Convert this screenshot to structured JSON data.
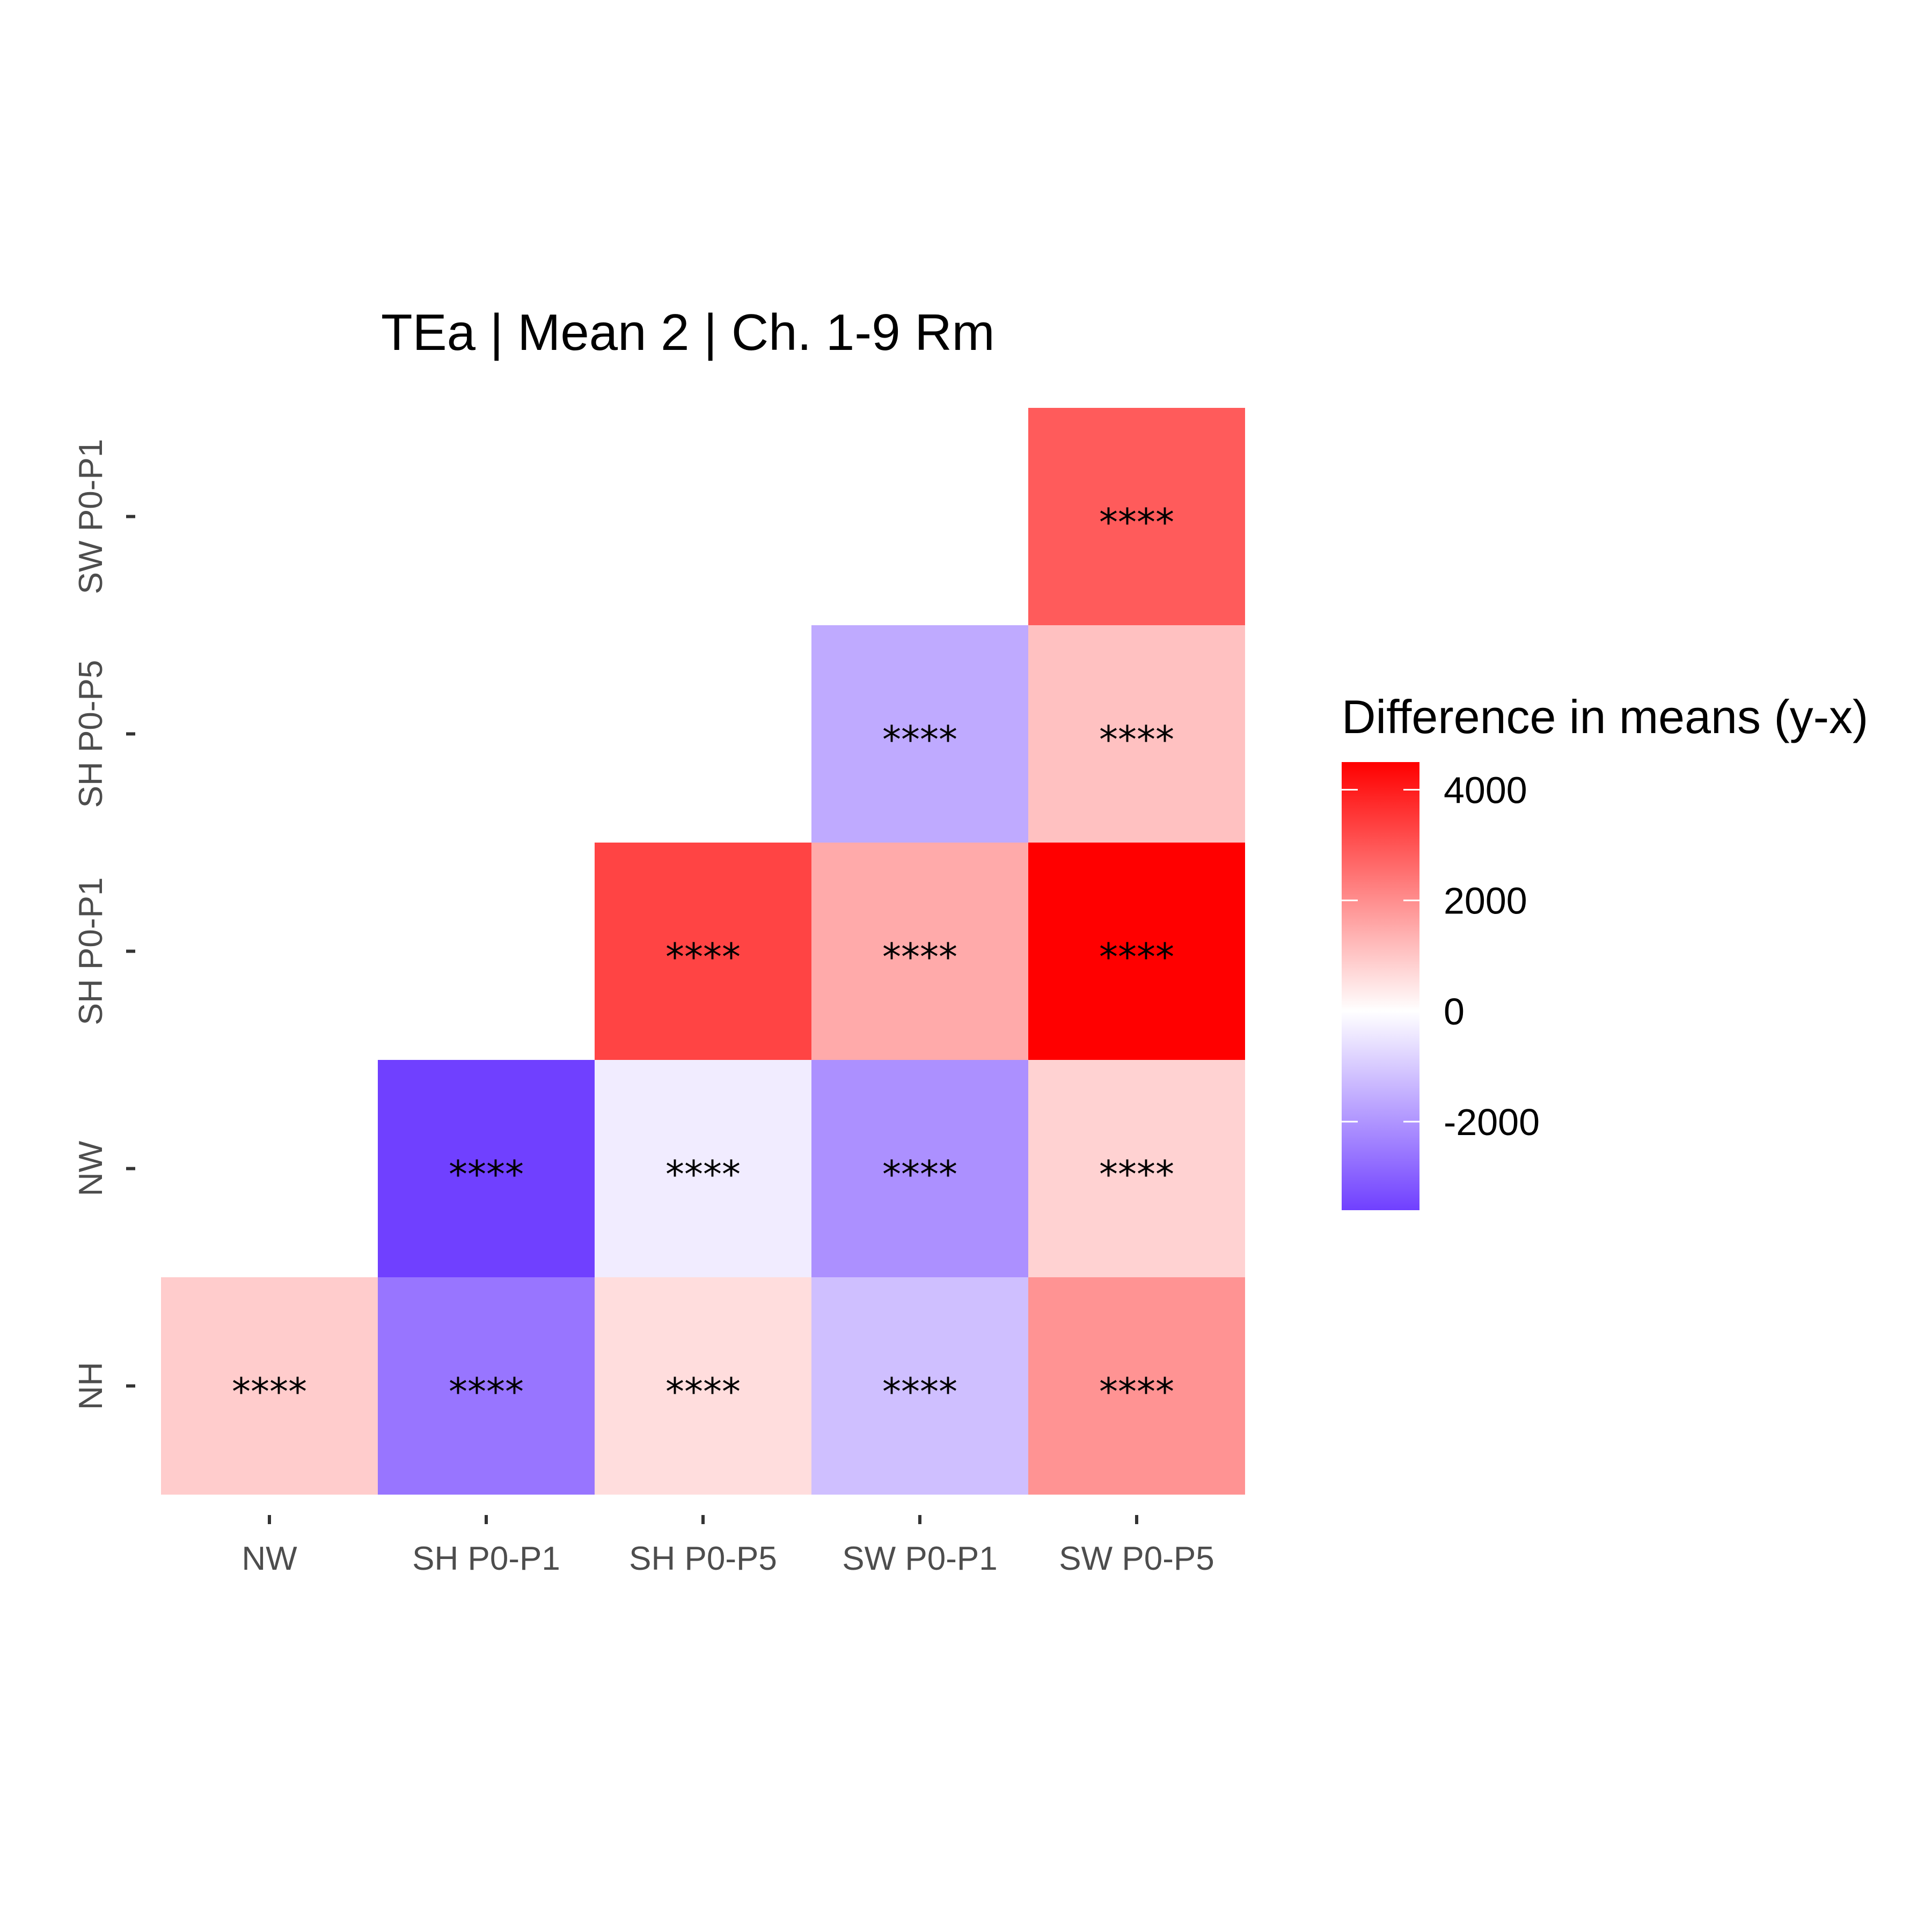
{
  "chart_data": {
    "type": "heatmap",
    "title": "TEa | Mean 2 | Ch. 1-9 Rm",
    "x_categories": [
      "NW",
      "SH P0-P1",
      "SH P0-P5",
      "SW P0-P1",
      "SW P0-P5"
    ],
    "y_categories": [
      "NH",
      "NW",
      "SH P0-P1",
      "SH P0-P5",
      "SW P0-P1"
    ],
    "cells": [
      {
        "x": "NW",
        "y": "NH",
        "value": 900,
        "label": "****"
      },
      {
        "x": "SH P0-P1",
        "y": "NH",
        "value": -2600,
        "label": "****"
      },
      {
        "x": "SH P0-P5",
        "y": "NH",
        "value": 600,
        "label": "****"
      },
      {
        "x": "SW P0-P1",
        "y": "NH",
        "value": -1200,
        "label": "****"
      },
      {
        "x": "SW P0-P5",
        "y": "NH",
        "value": 1900,
        "label": "****"
      },
      {
        "x": "SH P0-P1",
        "y": "NW",
        "value": -3600,
        "label": "****"
      },
      {
        "x": "SH P0-P5",
        "y": "NW",
        "value": -350,
        "label": "****"
      },
      {
        "x": "SW P0-P1",
        "y": "NW",
        "value": -2100,
        "label": "****"
      },
      {
        "x": "SW P0-P5",
        "y": "NW",
        "value": 800,
        "label": "****"
      },
      {
        "x": "SH P0-P5",
        "y": "SH P0-P1",
        "value": 3300,
        "label": "****"
      },
      {
        "x": "SW P0-P1",
        "y": "SH P0-P1",
        "value": 1500,
        "label": "****"
      },
      {
        "x": "SW P0-P5",
        "y": "SH P0-P1",
        "value": 4500,
        "label": "****"
      },
      {
        "x": "SW P0-P1",
        "y": "SH P0-P5",
        "value": -1600,
        "label": "****"
      },
      {
        "x": "SW P0-P5",
        "y": "SH P0-P5",
        "value": 1100,
        "label": "****"
      },
      {
        "x": "SW P0-P5",
        "y": "SW P0-P1",
        "value": 2900,
        "label": "****"
      }
    ],
    "legend": {
      "title": "Difference in means (y-x)",
      "ticks": [
        4000,
        2000,
        0,
        -2000
      ],
      "range": [
        -3600,
        4500
      ],
      "placement": "right"
    },
    "colors": {
      "low": "#7040ff",
      "mid": "#ffffff",
      "high": "#ff0000"
    },
    "grid": false
  }
}
